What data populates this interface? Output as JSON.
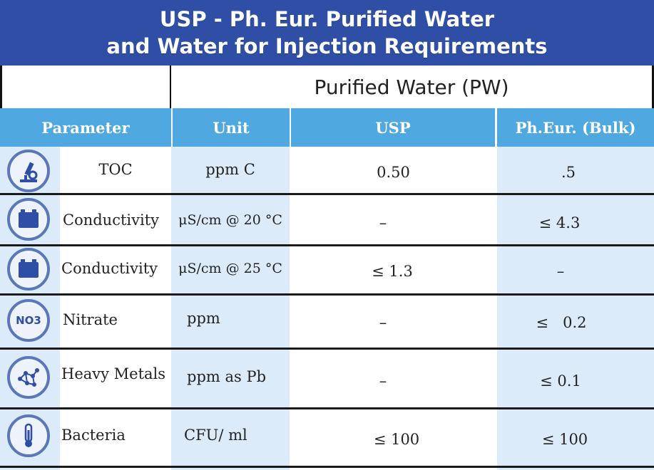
{
  "title": {
    "line1": "USP - Ph. Eur. Purified Water",
    "line2": "and Water for Injection Requirements"
  },
  "subheader": "Purified Water (PW)",
  "columns": [
    "Parameter",
    "Unit",
    "USP",
    "Ph.Eur. (Bulk)"
  ],
  "rows": [
    {
      "icon": "microscope-icon",
      "parameter": "TOC",
      "unit": "ppm C",
      "usp": "0.50",
      "pheur": ".5"
    },
    {
      "icon": "battery-icon",
      "parameter": "Conductivity",
      "unit": "μS/cm @ 20 °C",
      "usp": "–",
      "pheur": "≤ 4.3"
    },
    {
      "icon": "battery-icon",
      "parameter": "Conductivity",
      "unit": "μS/cm @ 25 °C",
      "usp": "≤ 1.3",
      "pheur": "–"
    },
    {
      "icon": "nitrate-icon",
      "icon_text": "NO3",
      "parameter": "Nitrate",
      "unit": "ppm",
      "usp": "–",
      "pheur": "≤   0.2"
    },
    {
      "icon": "molecule-icon",
      "parameter": "Heavy Metals",
      "unit": "ppm as Pb",
      "usp": "–",
      "pheur": "≤ 0.1"
    },
    {
      "icon": "thermometer-icon",
      "parameter": "Bacteria",
      "unit": "CFU/ ml",
      "usp": "≤ 100",
      "pheur": "≤ 100"
    }
  ],
  "colors": {
    "title_bg": "#2f4fa6",
    "header_bg": "#4fa9e0",
    "stripe": "#dcebfa",
    "icon_ring": "#5a78b8"
  }
}
